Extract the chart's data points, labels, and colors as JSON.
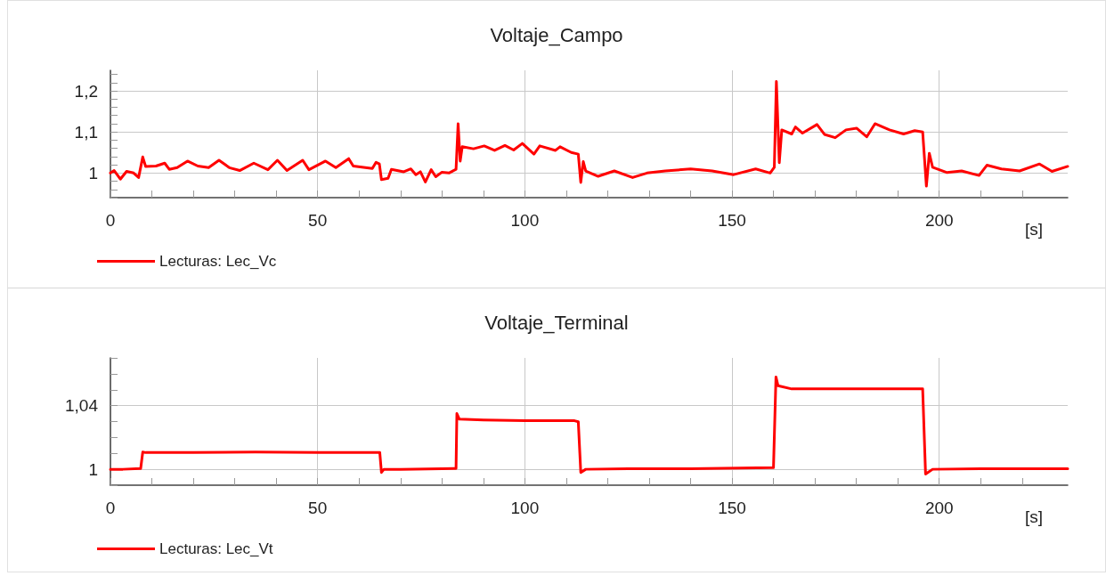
{
  "chart_data": [
    {
      "type": "line",
      "title": "Voltaje_Campo",
      "xlabel": "[s]",
      "x": [
        0,
        0.9,
        2.4,
        3.9,
        5.6,
        6.8,
        7.8,
        8.5,
        11,
        13.1,
        14.2,
        16.1,
        18.6,
        21.1,
        23.7,
        26.2,
        28.7,
        31.2,
        34.6,
        38,
        40.3,
        42.6,
        46.4,
        47.9,
        51.9,
        54.4,
        57.5,
        58.6,
        63.2,
        64.1,
        64.9,
        65.4,
        67,
        67.8,
        70.8,
        72.5,
        73.7,
        74.8,
        76,
        77.4,
        78.5,
        80,
        81.7,
        83.4,
        83.9,
        84.4,
        84.9,
        87.6,
        90.2,
        92.7,
        95.2,
        97.3,
        99.4,
        102.2,
        103.6,
        107.4,
        108.5,
        111.2,
        112.9,
        113.5,
        114.1,
        114.7,
        117.7,
        121.6,
        126,
        129.5,
        133.9,
        140,
        145.2,
        150.4,
        155.7,
        159.2,
        160.2,
        160.7,
        161.4,
        162,
        164.4,
        165.3,
        167,
        170.5,
        172.3,
        174.9,
        177.5,
        180.1,
        182.5,
        184.5,
        188,
        191.4,
        194.1,
        196,
        196.9,
        197.6,
        198.4,
        201.9,
        205.4,
        209.6,
        211.5,
        215,
        219.4,
        224.2,
        227.2,
        231
      ],
      "series": [
        {
          "name": "Lecturas: Lec_Vc",
          "color": "#ff0000",
          "values": [
            1.0,
            1.006,
            0.985,
            1.004,
            1.0,
            0.989,
            1.039,
            1.016,
            1.017,
            1.024,
            1.009,
            1.013,
            1.029,
            1.017,
            1.013,
            1.031,
            1.013,
            1.006,
            1.024,
            1.008,
            1.031,
            1.006,
            1.031,
            1.008,
            1.029,
            1.013,
            1.035,
            1.017,
            1.011,
            1.026,
            1.022,
            0.984,
            0.987,
            1.009,
            1.003,
            1.01,
            0.996,
            1.003,
            0.978,
            1.008,
            0.991,
            1.002,
            1.0,
            1.009,
            1.12,
            1.029,
            1.064,
            1.059,
            1.066,
            1.055,
            1.067,
            1.056,
            1.072,
            1.046,
            1.066,
            1.055,
            1.064,
            1.05,
            1.046,
            0.977,
            1.028,
            1.005,
            0.992,
            1.005,
            0.989,
            1.0,
            1.005,
            1.01,
            1.005,
            0.996,
            1.01,
            1.0,
            1.014,
            1.223,
            1.025,
            1.105,
            1.095,
            1.112,
            1.097,
            1.118,
            1.094,
            1.086,
            1.105,
            1.109,
            1.088,
            1.12,
            1.105,
            1.095,
            1.103,
            1.1,
            0.968,
            1.048,
            1.014,
            1.001,
            1.005,
            0.994,
            1.019,
            1.01,
            1.005,
            1.022,
            1.004,
            1.016
          ]
        }
      ],
      "xlim": [
        0,
        231
      ],
      "xticks": [
        0,
        {
          "value": 10,
          "label": null
        },
        {
          "value": 20,
          "label": null
        },
        {
          "value": 30,
          "label": null
        },
        {
          "value": 40,
          "label": null
        },
        50,
        {
          "value": 60,
          "label": null
        },
        {
          "value": 70,
          "label": null
        },
        {
          "value": 80,
          "label": null
        },
        {
          "value": 90,
          "label": null
        },
        100,
        {
          "value": 110,
          "label": null
        },
        {
          "value": 120,
          "label": null
        },
        {
          "value": 130,
          "label": null
        },
        {
          "value": 140,
          "label": null
        },
        150,
        {
          "value": 160,
          "label": null
        },
        {
          "value": 170,
          "label": null
        },
        {
          "value": 180,
          "label": null
        },
        {
          "value": 190,
          "label": null
        },
        200,
        {
          "value": 210,
          "label": null
        },
        {
          "value": 220,
          "label": null
        }
      ],
      "ylim": [
        0.94,
        1.25
      ],
      "yticks": [
        {
          "value": 0.94,
          "label": null
        },
        {
          "value": 0.96,
          "label": null
        },
        {
          "value": 0.98,
          "label": null
        },
        1,
        {
          "value": 1.02,
          "label": null
        },
        {
          "value": 1.04,
          "label": null
        },
        {
          "value": 1.06,
          "label": null
        },
        {
          "value": 1.08,
          "label": null
        },
        {
          "value": 1.1,
          "label": "1,1"
        },
        {
          "value": 1.12,
          "label": null
        },
        {
          "value": 1.14,
          "label": null
        },
        {
          "value": 1.16,
          "label": null
        },
        {
          "value": 1.18,
          "label": null
        },
        {
          "value": 1.2,
          "label": "1,2"
        },
        {
          "value": 1.22,
          "label": null
        },
        {
          "value": 1.24,
          "label": null
        }
      ],
      "grid": true,
      "legend": "bottom left"
    },
    {
      "type": "line",
      "title": "Voltaje_Terminal",
      "xlabel": "[s]",
      "x": [
        0,
        3,
        7.3,
        7.8,
        8.5,
        20,
        35,
        50,
        65,
        65.4,
        66,
        70,
        80,
        83.4,
        83.6,
        84.2,
        90,
        100,
        112,
        112.9,
        113.5,
        114.7,
        125,
        140,
        160,
        160.6,
        161.1,
        164.4,
        180,
        196,
        196.7,
        198.4,
        210,
        231
      ],
      "series": [
        {
          "name": "Lecturas: Lec_Vt",
          "color": "#ff0000",
          "values": [
            1.0,
            1.0,
            1.0005,
            1.0108,
            1.0105,
            1.0105,
            1.0108,
            1.0105,
            1.0105,
            0.998,
            1.0,
            1.0,
            1.0003,
            1.0005,
            1.035,
            1.0315,
            1.031,
            1.0305,
            1.0305,
            1.0299,
            0.998,
            1.0,
            1.0003,
            1.0003,
            1.001,
            1.058,
            1.0525,
            1.0505,
            1.0505,
            1.0505,
            0.997,
            1.0,
            1.0003,
            1.0003
          ]
        }
      ],
      "xlim": [
        0,
        231
      ],
      "xticks": [
        0,
        {
          "value": 10,
          "label": null
        },
        {
          "value": 20,
          "label": null
        },
        {
          "value": 30,
          "label": null
        },
        {
          "value": 40,
          "label": null
        },
        50,
        {
          "value": 60,
          "label": null
        },
        {
          "value": 70,
          "label": null
        },
        {
          "value": 80,
          "label": null
        },
        {
          "value": 90,
          "label": null
        },
        100,
        {
          "value": 110,
          "label": null
        },
        {
          "value": 120,
          "label": null
        },
        {
          "value": 130,
          "label": null
        },
        {
          "value": 140,
          "label": null
        },
        150,
        {
          "value": 160,
          "label": null
        },
        {
          "value": 170,
          "label": null
        },
        {
          "value": 180,
          "label": null
        },
        {
          "value": 190,
          "label": null
        },
        200,
        {
          "value": 210,
          "label": null
        },
        {
          "value": 220,
          "label": null
        }
      ],
      "ylim": [
        0.99,
        1.07
      ],
      "yticks": [
        {
          "value": 0.99,
          "label": null
        },
        1,
        {
          "value": 1.01,
          "label": null
        },
        {
          "value": 1.02,
          "label": null
        },
        {
          "value": 1.03,
          "label": null
        },
        {
          "value": 1.04,
          "label": "1,04"
        },
        {
          "value": 1.05,
          "label": null
        },
        {
          "value": 1.06,
          "label": null
        },
        {
          "value": 1.07,
          "label": null
        }
      ],
      "grid": true,
      "legend": "bottom left"
    }
  ]
}
